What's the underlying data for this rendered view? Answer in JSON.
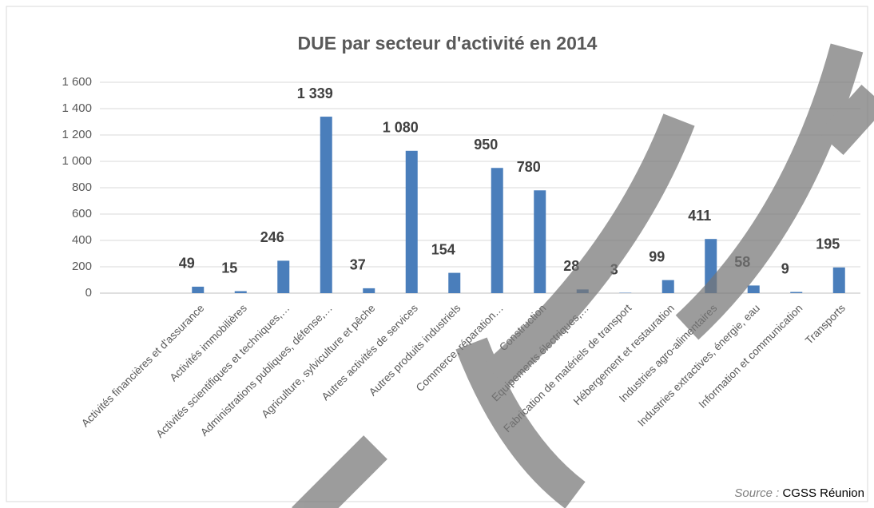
{
  "chart_data": {
    "type": "bar",
    "title": "DUE par secteur d'activité en 2014",
    "categories": [
      "Activités financières et d'assurance",
      "Activités immobilières",
      "Activités scientifiques et techniques,…",
      "Administrations publiques, défense,…",
      "Agriculture, sylviculture et pêche",
      "Autres activités de services",
      "Autres produits industriels",
      "Commerce, réparation…",
      "Construction",
      "Equipements électriques,…",
      "Fabrication de matériels de transport",
      "Hébergement et restauration",
      "Industries agro-alimentaires",
      "Industries extractives, énergie, eau",
      "Information et communication",
      "Transports"
    ],
    "values": [
      49,
      15,
      246,
      1339,
      37,
      1080,
      154,
      950,
      780,
      28,
      3,
      99,
      411,
      58,
      9,
      195
    ],
    "value_labels": [
      "49",
      "15",
      "246",
      "1 339",
      "37",
      "1 080",
      "154",
      "950",
      "780",
      "28",
      "3",
      "99",
      "411",
      "58",
      "9",
      "195"
    ],
    "color": "#4a7ebb",
    "ylim": [
      0,
      1600
    ],
    "yticks": [
      0,
      200,
      400,
      600,
      800,
      {
        "value": 1000,
        "label": "1 000"
      },
      {
        "value": 1200,
        "label": "1 200"
      },
      {
        "value": 1400,
        "label": "1 400"
      },
      {
        "value": 1600,
        "label": "1 600"
      }
    ],
    "grid": true,
    "source_label": "Source :",
    "source": "CGSS Réunion"
  }
}
